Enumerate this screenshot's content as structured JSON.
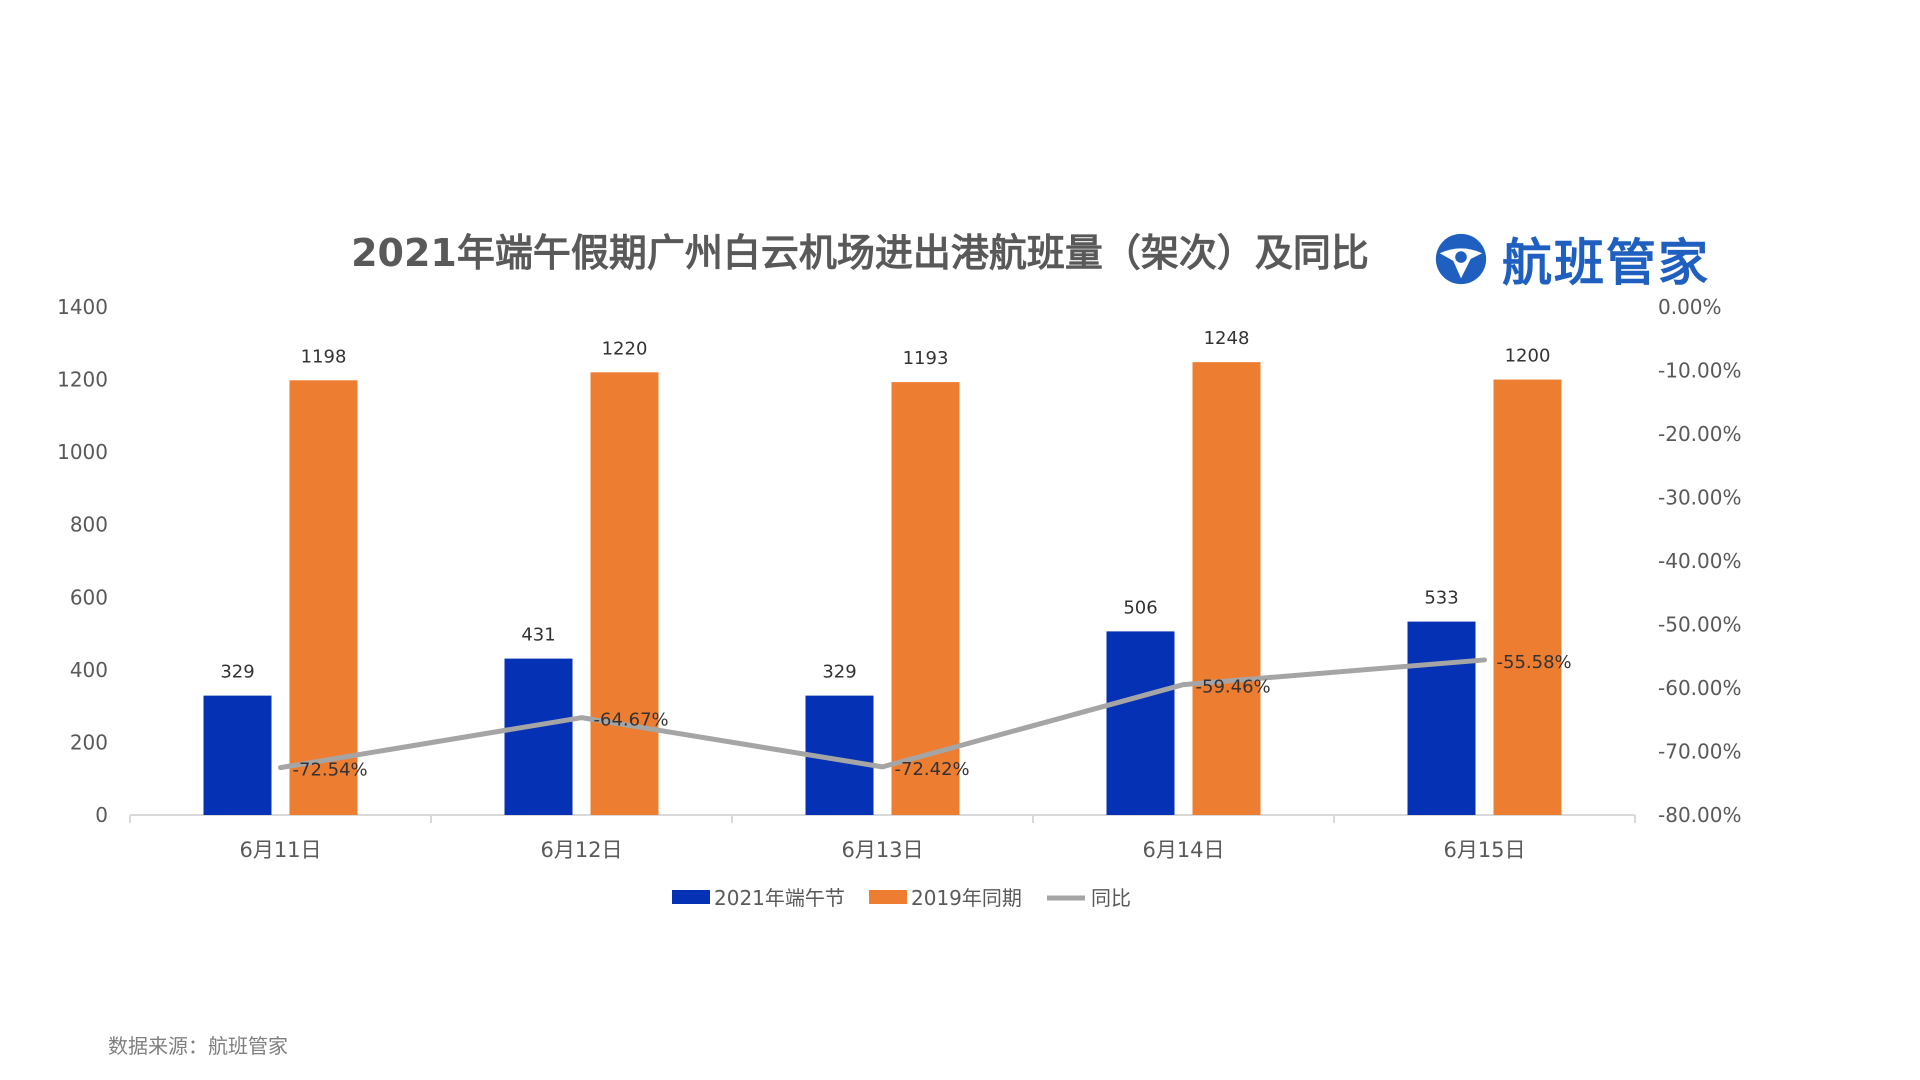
{
  "title": "2021年端午假期广州白云机场进出港航班量（架次）及同比",
  "logo_text": "航班管家",
  "source": "数据来源：航班管家",
  "colors": {
    "series2021": "#0531b4",
    "series2019": "#ed7d31",
    "yoy": "#a5a5a5",
    "axis": "#d9d9d9",
    "logo": "#1e5fbf"
  },
  "chart_data": {
    "type": "bar",
    "title": "2021年端午假期广州白云机场进出港航班量（架次）及同比",
    "categories": [
      "6月11日",
      "6月12日",
      "6月13日",
      "6月14日",
      "6月15日"
    ],
    "series": [
      {
        "name": "2021年端午节",
        "type": "bar",
        "values": [
          329,
          431,
          329,
          506,
          533
        ],
        "labels": [
          "329",
          "431",
          "329",
          "506",
          "533"
        ]
      },
      {
        "name": "2019年同期",
        "type": "bar",
        "values": [
          1198,
          1220,
          1193,
          1248,
          1200
        ],
        "labels": [
          "1198",
          "1220",
          "1193",
          "1248",
          "1200"
        ]
      },
      {
        "name": "同比",
        "type": "line",
        "axis": "right",
        "values": [
          -72.54,
          -64.67,
          -72.42,
          -59.46,
          -55.58
        ],
        "labels": [
          "-72.54%",
          "-64.67%",
          "-72.42%",
          "-59.46%",
          "-55.58%"
        ]
      }
    ],
    "y_left": {
      "min": 0,
      "max": 1400,
      "ticks": [
        "0",
        "200",
        "400",
        "600",
        "800",
        "1000",
        "1200",
        "1400"
      ]
    },
    "y_right": {
      "min": -80,
      "max": 0,
      "ticks": [
        "-80.00%",
        "-70.00%",
        "-60.00%",
        "-50.00%",
        "-40.00%",
        "-30.00%",
        "-20.00%",
        "-10.00%",
        "0.00%"
      ]
    },
    "legend": [
      "2021年端午节",
      "2019年同期",
      "同比"
    ],
    "legend_position": "bottom"
  }
}
